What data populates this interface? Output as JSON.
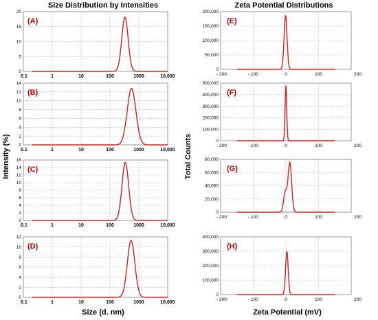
{
  "titles": {
    "left": "Size Distribution by Intensities",
    "right": "Zeta Potential Distributions"
  },
  "axis_titles": {
    "left_y": "Intensity (%)",
    "left_x": "Size  (d. nm)",
    "right_y": "Total Counts",
    "right_x": "Zeta Potential (mV)"
  },
  "colors": {
    "curve": "#d42020",
    "panel_label": "#c00000",
    "frame": "#808080"
  },
  "chart_data": [
    {
      "type": "line",
      "label": "(A)",
      "side": "left",
      "xscale": "log",
      "xlim": [
        0.1,
        10000
      ],
      "ylim": [
        0,
        20
      ],
      "xticks": [
        "0.1",
        "1",
        "10",
        "100",
        "1000",
        "10,000"
      ],
      "yticks": [
        "0",
        "5",
        "10",
        "15",
        "20"
      ],
      "peak": {
        "center": 330,
        "height": 18.2,
        "width_log10": 0.11
      },
      "grid": true
    },
    {
      "type": "line",
      "label": "(B)",
      "side": "left",
      "xscale": "log",
      "xlim": [
        0.1,
        10000
      ],
      "ylim": [
        0,
        14
      ],
      "xticks": [
        "0.1",
        "1",
        "10",
        "100",
        "1000",
        "10,000"
      ],
      "yticks": [
        "0",
        "2",
        "4",
        "6",
        "8",
        "10",
        "12",
        "14"
      ],
      "peak": {
        "center": 560,
        "height": 12.8,
        "width_log10": 0.15
      },
      "grid": true
    },
    {
      "type": "line",
      "label": "(C)",
      "side": "left",
      "xscale": "log",
      "xlim": [
        0.1,
        10000
      ],
      "ylim": [
        0,
        16
      ],
      "xticks": [
        "0.1",
        "1",
        "10",
        "100",
        "1000",
        "10,000"
      ],
      "yticks": [
        "0",
        "2",
        "4",
        "6",
        "8",
        "10",
        "12",
        "14",
        "16"
      ],
      "peak": {
        "center": 340,
        "height": 15.4,
        "width_log10": 0.115
      },
      "grid": true
    },
    {
      "type": "line",
      "label": "(D)",
      "side": "left",
      "xscale": "log",
      "xlim": [
        0.1,
        10000
      ],
      "ylim": [
        0,
        12
      ],
      "xticks": [
        "0.1",
        "1",
        "10",
        "100",
        "1000",
        "10,000"
      ],
      "yticks": [
        "0",
        "2",
        "4",
        "6",
        "8",
        "10",
        "12"
      ],
      "peak": {
        "center": 540,
        "height": 11.3,
        "width_log10": 0.13
      },
      "grid": true
    },
    {
      "type": "line",
      "label": "(E)",
      "side": "right",
      "xscale": "linear",
      "xlim": [
        -200,
        200
      ],
      "ylim": [
        0,
        200000
      ],
      "xticks": [
        "- 200",
        "- 100",
        "0",
        "100",
        "200"
      ],
      "yticks": [
        "0",
        "50,000",
        "100,000",
        "150,000",
        "200,000"
      ],
      "peak": {
        "center": -1,
        "height": 187000,
        "width": 4.5
      },
      "grid": true
    },
    {
      "type": "line",
      "label": "(F)",
      "side": "right",
      "xscale": "linear",
      "xlim": [
        -200,
        200
      ],
      "ylim": [
        0,
        500000
      ],
      "xticks": [
        "- 200",
        "- 100",
        "0",
        "100",
        "200"
      ],
      "yticks": [
        "0",
        "100,000",
        "200,000",
        "300,000",
        "400,000",
        "500,000"
      ],
      "peak": {
        "center": 0,
        "height": 480000,
        "width": 2.5
      },
      "grid": true
    },
    {
      "type": "line",
      "label": "(G)",
      "side": "right",
      "xscale": "linear",
      "xlim": [
        -200,
        200
      ],
      "ylim": [
        0,
        80000
      ],
      "xticks": [
        "- 200",
        "- 100",
        "0",
        "100",
        "200"
      ],
      "yticks": [
        "0",
        "20,000",
        "40,000",
        "60,000",
        "80,000"
      ],
      "peak": {
        "center": 12,
        "height": 75000,
        "width": 5.5
      },
      "shoulder": {
        "center": -2,
        "height": 30000,
        "width": 5
      },
      "grid": true
    },
    {
      "type": "line",
      "label": "(H)",
      "side": "right",
      "xscale": "linear",
      "xlim": [
        -200,
        200
      ],
      "ylim": [
        0,
        400000
      ],
      "xticks": [
        "- 200",
        "- 100",
        "0",
        "100",
        "200"
      ],
      "yticks": [
        "0",
        "100,000",
        "200,000",
        "300,000",
        "400,000"
      ],
      "peak": {
        "center": 3,
        "height": 300000,
        "width": 4
      },
      "grid": true
    }
  ]
}
